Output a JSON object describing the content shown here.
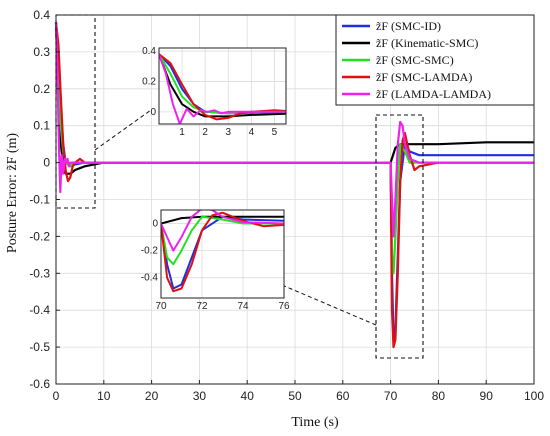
{
  "chart_data": {
    "type": "line",
    "xlabel": "Time (s)",
    "ylabel": "Posture Error: z̃F (m)",
    "xlim": [
      0,
      100
    ],
    "ylim": [
      -0.6,
      0.4
    ],
    "xticks": [
      0,
      10,
      20,
      30,
      40,
      50,
      60,
      70,
      80,
      90,
      100
    ],
    "yticks": [
      -0.6,
      -0.5,
      -0.4,
      -0.3,
      -0.2,
      -0.1,
      0,
      0.1,
      0.2,
      0.3,
      0.4
    ],
    "xtick_labels": [
      "0",
      "10",
      "20",
      "30",
      "40",
      "50",
      "60",
      "70",
      "80",
      "90",
      "100"
    ],
    "ytick_labels": [
      "-0.6",
      "-0.5",
      "-0.4",
      "-0.3",
      "-0.2",
      "-0.1",
      "0",
      "0.1",
      "0.2",
      "0.3",
      "0.4"
    ],
    "grid": true,
    "legend_position": "top-right",
    "series": [
      {
        "name": "z̃F (SMC-ID)",
        "color": "#1f2fe0",
        "x": [
          0,
          0.5,
          1,
          1.5,
          2,
          3,
          4,
          6,
          10,
          20,
          40,
          60,
          69,
          70,
          70.3,
          70.6,
          71,
          71.5,
          72,
          73,
          74,
          76,
          80,
          90,
          100
        ],
        "y": [
          0.38,
          0.3,
          0.15,
          0.05,
          0.0,
          -0.01,
          -0.005,
          0.0,
          0.0,
          0.0,
          0.0,
          0.0,
          0.0,
          0.0,
          -0.3,
          -0.48,
          -0.45,
          -0.25,
          -0.05,
          0.05,
          0.03,
          0.02,
          0.02,
          0.02,
          0.02
        ]
      },
      {
        "name": "z̃F (Kinematic-SMC)",
        "color": "#000000",
        "x": [
          0,
          0.5,
          1,
          1.5,
          2,
          3,
          4,
          6,
          10,
          20,
          40,
          60,
          69,
          70,
          71,
          72,
          74,
          76,
          80,
          90,
          100
        ],
        "y": [
          0.38,
          0.18,
          0.05,
          0.0,
          -0.03,
          -0.03,
          -0.02,
          -0.01,
          0.0,
          0.0,
          0.0,
          0.0,
          0.0,
          0.0,
          0.04,
          0.05,
          0.05,
          0.05,
          0.05,
          0.055,
          0.055
        ]
      },
      {
        "name": "z̃F (SMC-SMC)",
        "color": "#22e022",
        "x": [
          0,
          0.5,
          1,
          1.5,
          2,
          3,
          4,
          6,
          10,
          20,
          40,
          60,
          69,
          70,
          70.3,
          70.6,
          71,
          71.5,
          72,
          73,
          74,
          76,
          80,
          90,
          100
        ],
        "y": [
          0.38,
          0.25,
          0.1,
          0.03,
          0.0,
          -0.01,
          0.0,
          0.0,
          0.0,
          0.0,
          0.0,
          0.0,
          0.0,
          0.0,
          -0.25,
          -0.3,
          -0.2,
          -0.05,
          0.05,
          0.03,
          0.0,
          0.0,
          0.0,
          0.0,
          0.0
        ]
      },
      {
        "name": "z̃F (SMC-LAMDA)",
        "color": "#e01010",
        "x": [
          0,
          0.5,
          1,
          1.5,
          2,
          2.5,
          3,
          3.5,
          4,
          5,
          6,
          10,
          20,
          40,
          60,
          69,
          70,
          70.3,
          70.6,
          71,
          71.5,
          72,
          72.5,
          73,
          74,
          75,
          76,
          80,
          90,
          100
        ],
        "y": [
          0.38,
          0.32,
          0.18,
          0.05,
          -0.02,
          -0.05,
          -0.04,
          -0.01,
          0.0,
          0.01,
          0.0,
          0.0,
          0.0,
          0.0,
          0.0,
          0.0,
          0.0,
          -0.4,
          -0.5,
          -0.48,
          -0.3,
          -0.05,
          0.06,
          0.08,
          0.02,
          -0.02,
          -0.01,
          0.0,
          0.0,
          0.0
        ]
      },
      {
        "name": "z̃F (LAMDA-LAMDA)",
        "color": "#ee22ee",
        "x": [
          0,
          0.3,
          0.6,
          0.9,
          1.2,
          1.5,
          1.8,
          2.1,
          2.4,
          2.7,
          3,
          3.5,
          4,
          6,
          10,
          20,
          40,
          60,
          69,
          70,
          70.3,
          70.6,
          71,
          71.5,
          72,
          72.5,
          73,
          74,
          76,
          80,
          90,
          100
        ],
        "y": [
          0.38,
          0.25,
          0.05,
          -0.08,
          0.02,
          -0.03,
          0.01,
          0.0,
          0.01,
          -0.01,
          0.0,
          0.0,
          0.0,
          0.0,
          0.0,
          0.0,
          0.0,
          0.0,
          0.0,
          0.0,
          -0.1,
          -0.2,
          -0.1,
          0.05,
          0.11,
          0.1,
          0.05,
          0.01,
          0.0,
          0.0,
          0.0,
          0.0
        ]
      }
    ],
    "insets": [
      {
        "xlim": [
          0,
          5.5
        ],
        "ylim": [
          -0.08,
          0.42
        ],
        "xticks": [
          1,
          2,
          3,
          4,
          5
        ],
        "yticks": [
          0,
          0.2,
          0.4
        ],
        "xtick_labels": [
          "1",
          "2",
          "3",
          "4",
          "5"
        ],
        "ytick_labels": [
          "0",
          "0.2",
          "0.4"
        ]
      },
      {
        "xlim": [
          70,
          76
        ],
        "ylim": [
          -0.55,
          0.1
        ],
        "xticks": [
          70,
          72,
          74,
          76
        ],
        "yticks": [
          0,
          -0.2,
          -0.4
        ],
        "xtick_labels": [
          "70",
          "72",
          "74",
          "76"
        ],
        "ytick_labels": [
          "0",
          "-0.2",
          "-0.4"
        ]
      }
    ]
  }
}
